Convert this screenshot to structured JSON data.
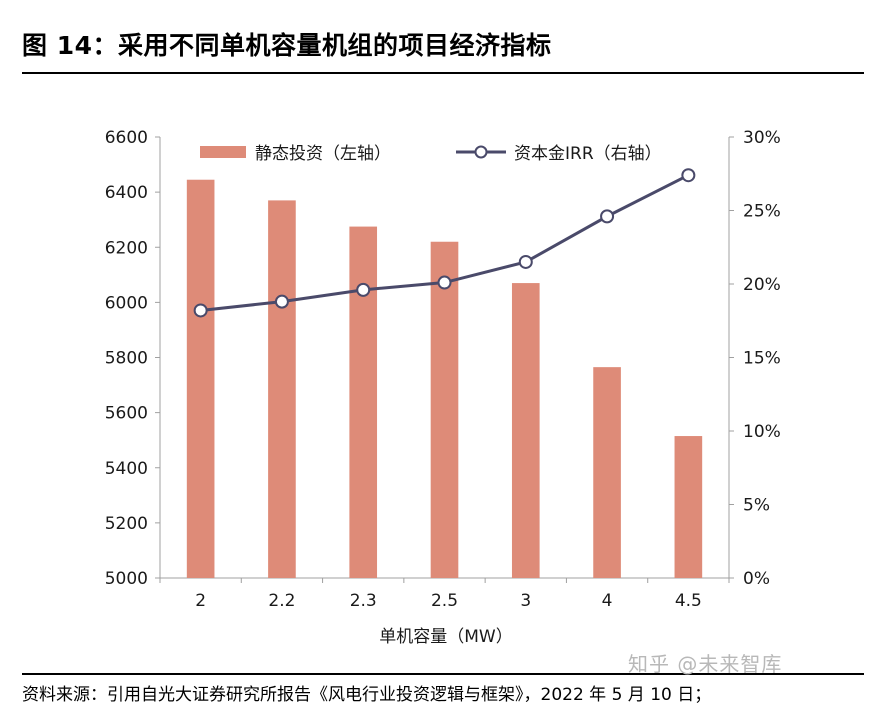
{
  "header": {
    "title": "图 14：采用不同单机容量机组的项目经济指标"
  },
  "footer": {
    "source": "资料来源：引用自光大证券研究所报告《风电行业投资逻辑与框架》，2022 年 5 月 10 日；",
    "watermark": "知乎 @未来智库"
  },
  "colors": {
    "bar": "#de8b78",
    "line": "#4a4a6a",
    "axis": "#a0a0a0"
  },
  "chart_data": {
    "type": "bar",
    "categories": [
      "2",
      "2.2",
      "2.3",
      "2.5",
      "3",
      "4",
      "4.5"
    ],
    "xlabel": "单机容量（MW）",
    "series": [
      {
        "name": "静态投资（左轴）",
        "type": "bar",
        "axis": "left",
        "values": [
          6445,
          6370,
          6275,
          6220,
          6070,
          5765,
          5515
        ]
      },
      {
        "name": "资本金IRR（右轴）",
        "type": "line",
        "axis": "right",
        "values": [
          18.2,
          18.8,
          19.6,
          20.1,
          21.5,
          24.6,
          27.4
        ]
      }
    ],
    "y_left": {
      "min": 5000,
      "max": 6600,
      "ticks": [
        "5000",
        "5200",
        "5400",
        "5600",
        "5800",
        "6000",
        "6200",
        "6400",
        "6600"
      ],
      "tick_values": [
        5000,
        5200,
        5400,
        5600,
        5800,
        6000,
        6200,
        6400,
        6600
      ]
    },
    "y_right": {
      "min": 0,
      "max": 30,
      "ticks": [
        "0%",
        "5%",
        "10%",
        "15%",
        "20%",
        "25%",
        "30%"
      ],
      "tick_values": [
        0,
        5,
        10,
        15,
        20,
        25,
        30
      ]
    },
    "legend_position": "top",
    "grid": false
  }
}
